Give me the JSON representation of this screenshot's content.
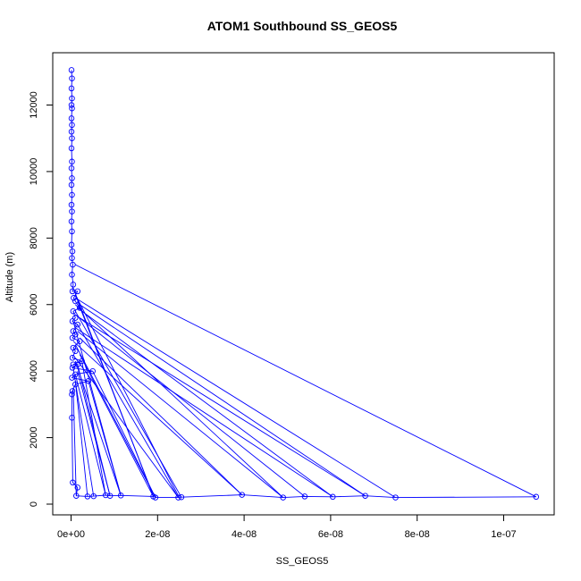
{
  "chart_data": {
    "type": "scatter",
    "title": "ATOM1 Southbound SS_GEOS5",
    "xlabel": "SS_GEOS5",
    "ylabel": "Altitude (m)",
    "xlim": [
      0,
      1.08e-07
    ],
    "ylim": [
      0,
      13100
    ],
    "x_ticks": [
      0,
      2e-08,
      4e-08,
      6e-08,
      8e-08,
      1e-07
    ],
    "x_tick_labels": [
      "0e+00",
      "2e-08",
      "4e-08",
      "6e-08",
      "8e-08",
      "1e-07"
    ],
    "y_ticks": [
      0,
      2000,
      4000,
      6000,
      8000,
      10000,
      12000
    ],
    "y_tick_labels": [
      "0",
      "2000",
      "4000",
      "6000",
      "8000",
      "10000",
      "12000"
    ],
    "series_color": "#0000ff",
    "grid": false,
    "legend": "none",
    "series": [
      {
        "points": [
          [
            1e-10,
            13050
          ],
          [
            2e-10,
            12800
          ],
          [
            1e-10,
            12500
          ],
          [
            2e-10,
            12200
          ],
          [
            1e-10,
            12000
          ],
          [
            2e-10,
            11900
          ],
          [
            1e-10,
            11600
          ],
          [
            2e-10,
            11400
          ],
          [
            1e-10,
            11200
          ],
          [
            2e-10,
            11000
          ],
          [
            1e-10,
            10700
          ],
          [
            2e-10,
            10300
          ],
          [
            1e-10,
            10100
          ],
          [
            2e-10,
            9800
          ],
          [
            1e-10,
            9600
          ],
          [
            2e-10,
            9300
          ],
          [
            1e-10,
            9000
          ],
          [
            2e-10,
            8800
          ],
          [
            1e-10,
            8500
          ],
          [
            2e-10,
            8200
          ],
          [
            1e-10,
            7800
          ],
          [
            3e-10,
            7600
          ],
          [
            2e-10,
            7400
          ],
          [
            4e-10,
            7200
          ],
          [
            2e-10,
            6900
          ],
          [
            5e-10,
            6600
          ],
          [
            3e-10,
            6400
          ],
          [
            1.5e-09,
            6400
          ],
          [
            6e-10,
            6200
          ],
          [
            1e-09,
            6100
          ],
          [
            2e-09,
            5900
          ],
          [
            5e-10,
            5800
          ],
          [
            1e-09,
            5600
          ],
          [
            3e-10,
            5500
          ],
          [
            1.5e-09,
            5400
          ],
          [
            5e-10,
            5200
          ],
          [
            1e-09,
            5100
          ],
          [
            3e-10,
            5000
          ],
          [
            2e-09,
            4900
          ],
          [
            5e-10,
            4700
          ],
          [
            1e-09,
            4600
          ],
          [
            3e-10,
            4400
          ],
          [
            2.5e-09,
            4300
          ],
          [
            5e-10,
            4200
          ],
          [
            1.5e-09,
            4200
          ],
          [
            3e-10,
            4100
          ],
          [
            5e-09,
            4000
          ],
          [
            1e-09,
            3900
          ],
          [
            2e-10,
            3800
          ],
          [
            4e-09,
            3700
          ],
          [
            1e-09,
            3600
          ],
          [
            3e-10,
            3400
          ],
          [
            2e-10,
            3300
          ],
          [
            2e-10,
            2600
          ],
          [
            4e-10,
            650
          ],
          [
            1.5e-09,
            500
          ],
          [
            1.2e-09,
            250
          ],
          [
            3.8e-09,
            230
          ],
          [
            5.2e-09,
            240
          ],
          [
            8e-09,
            270
          ],
          [
            9e-09,
            250
          ],
          [
            1.15e-08,
            260
          ],
          [
            1.9e-08,
            230
          ],
          [
            1.95e-08,
            200
          ],
          [
            2.48e-08,
            200
          ],
          [
            2.55e-08,
            210
          ],
          [
            3.95e-08,
            280
          ],
          [
            4.9e-08,
            200
          ],
          [
            5.4e-08,
            230
          ],
          [
            6.05e-08,
            220
          ],
          [
            6.8e-08,
            250
          ],
          [
            7.5e-08,
            200
          ],
          [
            1.075e-07,
            220
          ]
        ]
      }
    ],
    "line_segments": [
      [
        [
          1e-09,
          7200
        ],
        [
          1.075e-07,
          220
        ]
      ],
      [
        [
          1e-09,
          6200
        ],
        [
          7.5e-08,
          200
        ]
      ],
      [
        [
          2e-09,
          6000
        ],
        [
          6.8e-08,
          250
        ]
      ],
      [
        [
          1.5e-09,
          5900
        ],
        [
          6.05e-08,
          220
        ]
      ],
      [
        [
          1e-09,
          5700
        ],
        [
          5.4e-08,
          230
        ]
      ],
      [
        [
          1.5e-09,
          5200
        ],
        [
          4.9e-08,
          200
        ]
      ],
      [
        [
          2e-09,
          5000
        ],
        [
          3.95e-08,
          280
        ]
      ],
      [
        [
          1e-09,
          5800
        ],
        [
          2.55e-08,
          210
        ]
      ],
      [
        [
          1.5e-09,
          5400
        ],
        [
          2.48e-08,
          200
        ]
      ],
      [
        [
          1e-09,
          4800
        ],
        [
          1.95e-08,
          200
        ]
      ],
      [
        [
          2e-09,
          4500
        ],
        [
          1.9e-08,
          230
        ]
      ],
      [
        [
          1e-09,
          4300
        ],
        [
          1.15e-08,
          260
        ]
      ],
      [
        [
          1.5e-09,
          4000
        ],
        [
          9e-09,
          250
        ]
      ],
      [
        [
          1e-09,
          3900
        ],
        [
          8e-09,
          270
        ]
      ],
      [
        [
          5e-10,
          4100
        ],
        [
          5.2e-09,
          240
        ]
      ],
      [
        [
          1e-09,
          3700
        ],
        [
          3.8e-09,
          230
        ]
      ],
      [
        [
          5e-10,
          3500
        ],
        [
          1.2e-09,
          250
        ]
      ],
      [
        [
          1e-09,
          6300
        ],
        [
          2.5e-08,
          200
        ]
      ],
      [
        [
          1.5e-09,
          6100
        ],
        [
          1.9e-08,
          250
        ]
      ],
      [
        [
          5e-10,
          5500
        ],
        [
          1.15e-08,
          260
        ]
      ],
      [
        [
          1e-09,
          6000
        ],
        [
          4.9e-08,
          200
        ]
      ],
      [
        [
          2e-09,
          5600
        ],
        [
          6.8e-08,
          250
        ]
      ],
      [
        [
          1e-09,
          5300
        ],
        [
          6.05e-08,
          220
        ]
      ],
      [
        [
          5e-10,
          4900
        ],
        [
          3.95e-08,
          280
        ]
      ],
      [
        [
          1e-09,
          4400
        ],
        [
          2.48e-08,
          200
        ]
      ],
      [
        [
          5e-10,
          6500
        ],
        [
          1.9e-08,
          230
        ]
      ],
      [
        [
          1.5e-09,
          4200
        ],
        [
          9e-09,
          250
        ]
      ],
      [
        [
          5e-09,
          4000
        ],
        [
          1.95e-08,
          200
        ]
      ],
      [
        [
          4e-09,
          3700
        ],
        [
          1.15e-08,
          260
        ]
      ],
      [
        [
          2.5e-09,
          4300
        ],
        [
          8e-09,
          270
        ]
      ]
    ]
  }
}
